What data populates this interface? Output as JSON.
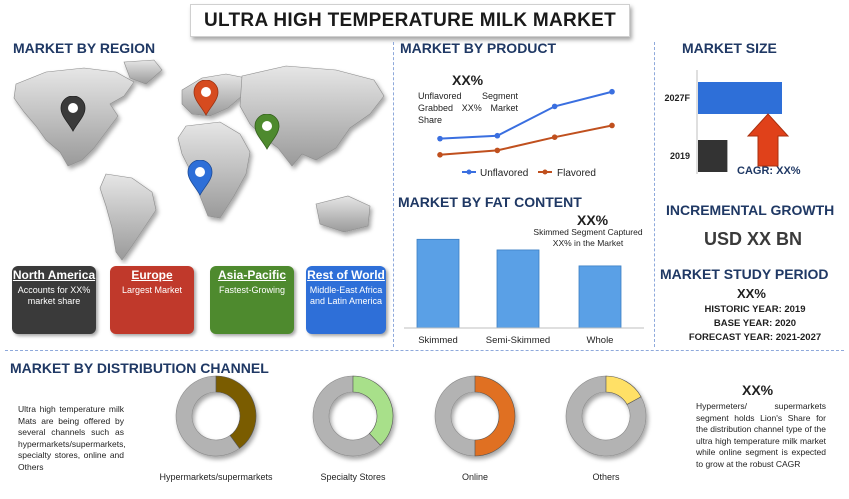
{
  "title": "ULTRA HIGH TEMPERATURE MILK MARKET",
  "region": {
    "heading": "MARKET BY REGION",
    "cards": [
      {
        "name": "North America",
        "desc": "Accounts for XX% market share",
        "color": "#3a3a3a"
      },
      {
        "name": "Europe",
        "desc": "Largest Market",
        "color": "#c0392b"
      },
      {
        "name": "Asia-Pacific",
        "desc": "Fastest-Growing",
        "color": "#4e8a2e"
      },
      {
        "name": "Rest of World",
        "desc": "Middle-East Africa and Latin America",
        "color": "#2e6fd8"
      }
    ]
  },
  "product": {
    "heading": "MARKET BY PRODUCT",
    "big": "XX%",
    "note": "Unflavored Segment Grabbed XX% Market Share",
    "chart_data": {
      "type": "line",
      "x": [
        1,
        2,
        3,
        4
      ],
      "series": [
        {
          "name": "Unflavored",
          "values": [
            2.0,
            2.2,
            4.2,
            5.2
          ],
          "color": "#3a6fe0"
        },
        {
          "name": "Flavored",
          "values": [
            0.9,
            1.2,
            2.1,
            2.9
          ],
          "color": "#c0501e"
        }
      ],
      "ylim": [
        0,
        6
      ],
      "legend": "bottom"
    }
  },
  "fat": {
    "heading": "MARKET BY  FAT CONTENT",
    "big": "XX%",
    "note": "Skimmed Segment Captured XX% in the Market",
    "chart_data": {
      "type": "bar",
      "categories": [
        "Skimmed",
        "Semi-Skimmed",
        "Whole"
      ],
      "values": [
        100,
        88,
        70
      ],
      "ylim": [
        0,
        115
      ],
      "color": "#5aa0e6"
    }
  },
  "size": {
    "heading": "MARKET SIZE",
    "chart_data": {
      "type": "bar",
      "orientation": "horizontal",
      "categories": [
        "2027F",
        "2019"
      ],
      "values": [
        100,
        35
      ],
      "colors": [
        "#2e6fd8",
        "#333333"
      ]
    },
    "cagr": "CAGR: XX%"
  },
  "growth": {
    "heading": "INCREMENTAL GROWTH",
    "value": "USD XX BN"
  },
  "study": {
    "heading": "MARKET STUDY PERIOD",
    "big": "XX%",
    "historic": "HISTORIC YEAR: 2019",
    "base": "BASE YEAR: 2020",
    "forecast": "FORECAST YEAR: 2021-2027"
  },
  "distribution": {
    "heading": "MARKET BY DISTRIBUTION CHANNEL",
    "intro": "Ultra high temperature milk Mats are being offered by several channels such as hypermarkets/supermarkets, specialty stores, online and Others",
    "chart_data": {
      "type": "pie",
      "donuts": [
        {
          "name": "Hypermarkets/supermarkets",
          "value": 40,
          "color": "#7a5c00"
        },
        {
          "name": "Specialty Stores",
          "value": 38,
          "color": "#a8e08a"
        },
        {
          "name": "Online",
          "value": 50,
          "color": "#e07020"
        },
        {
          "name": "Others",
          "value": 17,
          "color": "#ffe066"
        }
      ]
    },
    "big": "XX%",
    "note": "Hypermeters/ supermarkets segment holds Lion's Share for the distribution channel type of the ultra high temperature milk market while online segment is expected to grow at the robust CAGR"
  },
  "colors": {
    "heading": "#1f3864",
    "pin_black": "#3a3a3a",
    "pin_red": "#d64b1f",
    "pin_green": "#4e8a2e",
    "pin_blue": "#2e6fd8"
  }
}
